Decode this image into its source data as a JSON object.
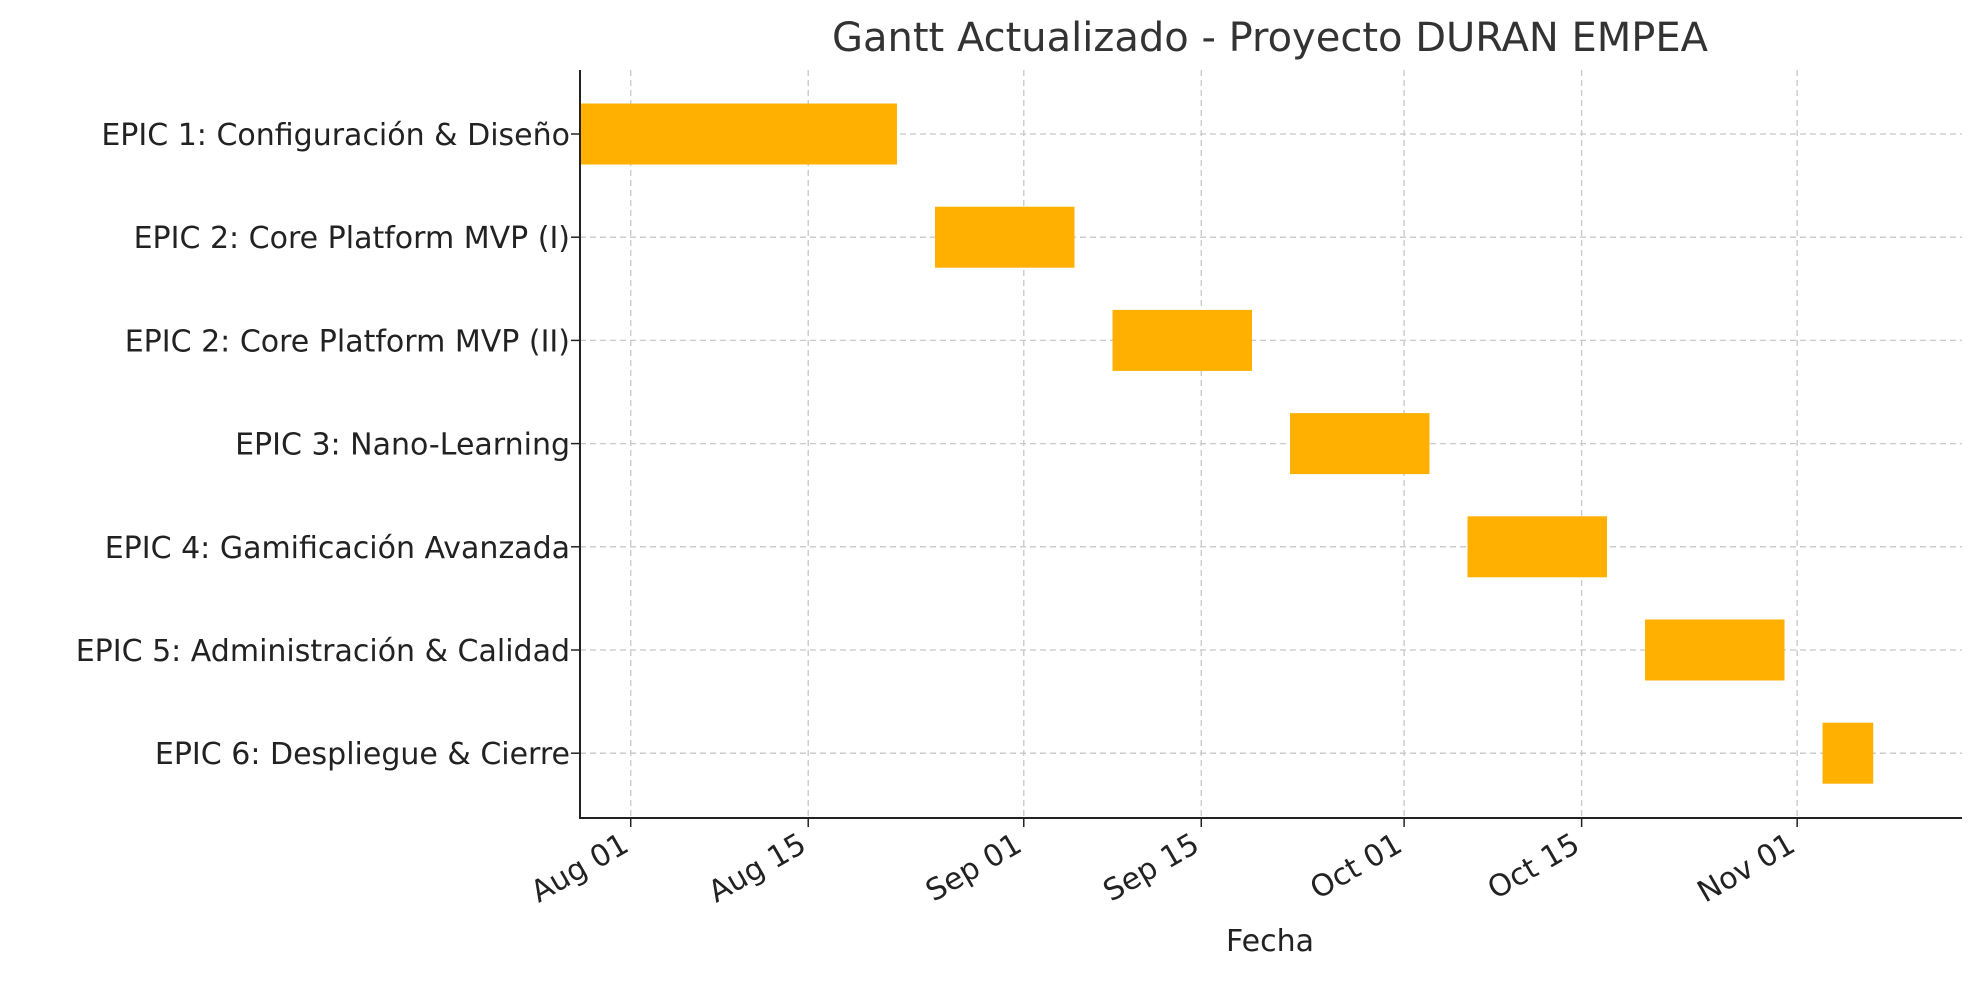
{
  "chart_data": {
    "type": "bar",
    "orientation": "horizontal",
    "title": "Gantt Actualizado - Proyecto DURAN EMPEA",
    "xlabel": "Fecha",
    "ylabel": "",
    "x_axis_type": "date",
    "xlim": [
      "2024-07-28",
      "2024-11-14"
    ],
    "x_ticks": [
      {
        "date": "2024-08-01",
        "label": "Aug 01"
      },
      {
        "date": "2024-08-15",
        "label": "Aug 15"
      },
      {
        "date": "2024-09-01",
        "label": "Sep 01"
      },
      {
        "date": "2024-09-15",
        "label": "Sep 15"
      },
      {
        "date": "2024-10-01",
        "label": "Oct 01"
      },
      {
        "date": "2024-10-15",
        "label": "Oct 15"
      },
      {
        "date": "2024-11-01",
        "label": "Nov 01"
      }
    ],
    "grid": true,
    "bar_color": "#FFB000",
    "tasks": [
      {
        "name": "EPIC 1: Configuración & Diseño",
        "start": "2024-07-28",
        "end": "2024-08-22"
      },
      {
        "name": "EPIC 2: Core Platform MVP (I)",
        "start": "2024-08-25",
        "end": "2024-09-05"
      },
      {
        "name": "EPIC 2: Core Platform MVP (II)",
        "start": "2024-09-08",
        "end": "2024-09-19"
      },
      {
        "name": "EPIC 3: Nano-Learning",
        "start": "2024-09-22",
        "end": "2024-10-03"
      },
      {
        "name": "EPIC 4: Gamificación Avanzada",
        "start": "2024-10-06",
        "end": "2024-10-17"
      },
      {
        "name": "EPIC 5: Administración & Calidad",
        "start": "2024-10-20",
        "end": "2024-10-31"
      },
      {
        "name": "EPIC 6: Despliegue & Cierre",
        "start": "2024-11-03",
        "end": "2024-11-07"
      }
    ]
  }
}
